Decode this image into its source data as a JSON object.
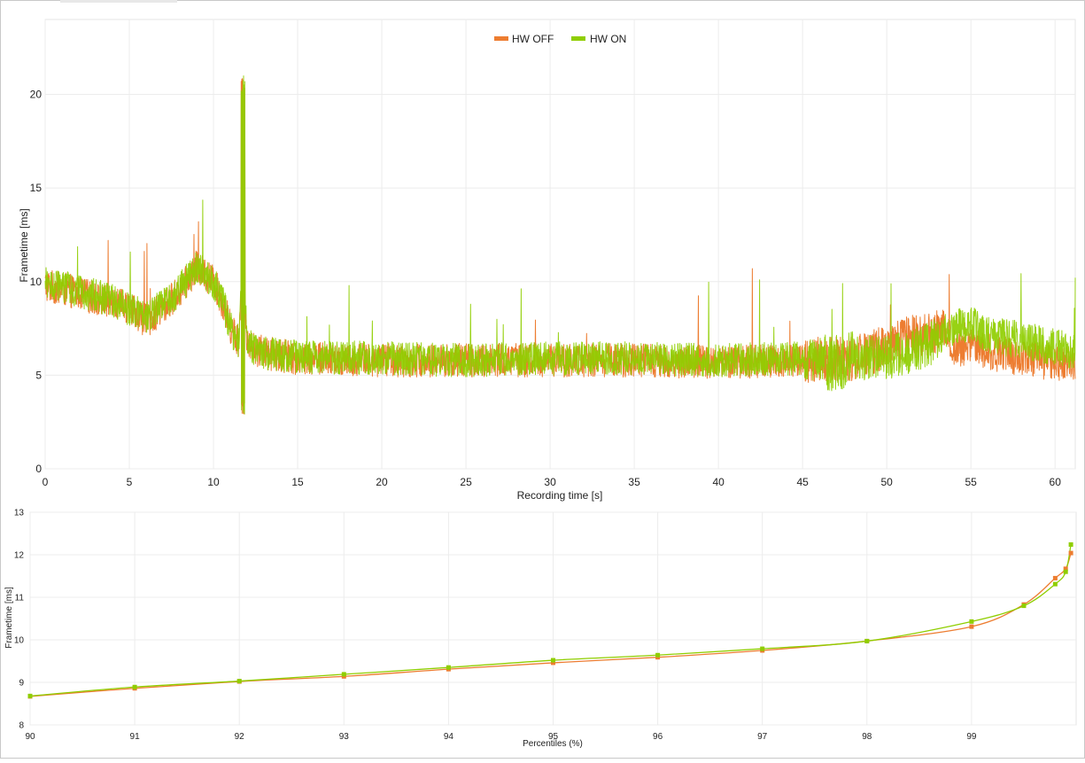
{
  "chart_data": [
    {
      "type": "line",
      "title": "",
      "xlabel": "Recording time [s]",
      "ylabel": "Frametime [ms]",
      "xlim": [
        0,
        61.2
      ],
      "ylim": [
        0,
        24
      ],
      "xticks": [
        0,
        5,
        10,
        15,
        20,
        25,
        30,
        35,
        40,
        45,
        50,
        55,
        60
      ],
      "yticks": [
        0,
        5,
        10,
        15,
        20
      ],
      "grid": true,
      "legend_position": "top-center",
      "series": [
        {
          "name": "HW OFF",
          "color": "#ed7d31",
          "x": [
            0,
            2,
            4,
            5,
            6,
            7,
            8,
            8.5,
            9,
            9.5,
            10,
            10.5,
            11,
            11.5,
            11.75,
            12,
            13,
            15,
            20,
            25,
            30,
            35,
            40,
            45,
            48,
            50,
            51,
            52,
            53,
            53.5,
            54,
            55,
            56,
            57,
            58,
            59,
            60,
            61
          ],
          "y": [
            9.8,
            9.4,
            8.8,
            8.6,
            7.9,
            8.6,
            9.5,
            10.1,
            10.8,
            10.4,
            10.0,
            9.0,
            7.6,
            6.8,
            12.0,
            6.5,
            6.2,
            5.9,
            5.8,
            5.8,
            5.8,
            5.8,
            5.7,
            5.8,
            5.9,
            6.5,
            6.9,
            7.1,
            7.3,
            7.6,
            6.4,
            6.5,
            6.3,
            6.1,
            5.9,
            5.8,
            5.7,
            5.6
          ]
        },
        {
          "name": "HW ON",
          "color": "#8fce00",
          "x": [
            0,
            2,
            4,
            5,
            6,
            7,
            8,
            8.5,
            9,
            9.5,
            10,
            10.5,
            11,
            11.5,
            11.75,
            12,
            13,
            15,
            20,
            25,
            30,
            35,
            40,
            45,
            46.8,
            48,
            50,
            51,
            52,
            53,
            53.5,
            54,
            55,
            56,
            57,
            58,
            59,
            60,
            61
          ],
          "y": [
            9.9,
            9.5,
            9.0,
            8.5,
            8.1,
            8.7,
            9.6,
            10.2,
            10.7,
            10.3,
            9.9,
            9.1,
            7.5,
            6.8,
            12.0,
            6.6,
            6.2,
            6.0,
            5.9,
            5.8,
            5.9,
            5.9,
            5.8,
            5.9,
            5.6,
            5.9,
            6.0,
            6.1,
            6.5,
            6.9,
            7.3,
            7.6,
            7.8,
            7.1,
            7.0,
            6.9,
            6.7,
            6.5,
            6.3
          ]
        }
      ],
      "annotations": {
        "spike_time_s": 11.75,
        "spike_peak_ms": 21.0,
        "spike_min_ms": 2.9
      }
    },
    {
      "type": "line",
      "title": "",
      "xlabel": "Percentiles (%)",
      "ylabel": "Frametime [ms]",
      "xlim": [
        90,
        100
      ],
      "ylim": [
        8,
        13
      ],
      "xticks": [
        90,
        91,
        92,
        93,
        94,
        95,
        96,
        97,
        98,
        99
      ],
      "yticks": [
        8,
        9,
        10,
        11,
        12,
        13
      ],
      "grid": true,
      "legend_position": "none",
      "series": [
        {
          "name": "HW OFF",
          "color": "#ed7d31",
          "x": [
            90,
            91,
            92,
            93,
            94,
            95,
            96,
            97,
            98,
            99,
            99.5,
            99.8,
            99.9,
            99.95
          ],
          "y": [
            8.67,
            8.86,
            9.02,
            9.14,
            9.31,
            9.46,
            9.59,
            9.75,
            9.97,
            10.31,
            10.83,
            11.45,
            11.67,
            12.04
          ]
        },
        {
          "name": "HW ON",
          "color": "#8fce00",
          "x": [
            90,
            91,
            92,
            93,
            94,
            95,
            96,
            97,
            98,
            99,
            99.5,
            99.8,
            99.9,
            99.95
          ],
          "y": [
            8.68,
            8.89,
            9.03,
            9.19,
            9.35,
            9.52,
            9.64,
            9.79,
            9.97,
            10.43,
            10.8,
            11.31,
            11.6,
            12.24
          ]
        }
      ]
    }
  ]
}
